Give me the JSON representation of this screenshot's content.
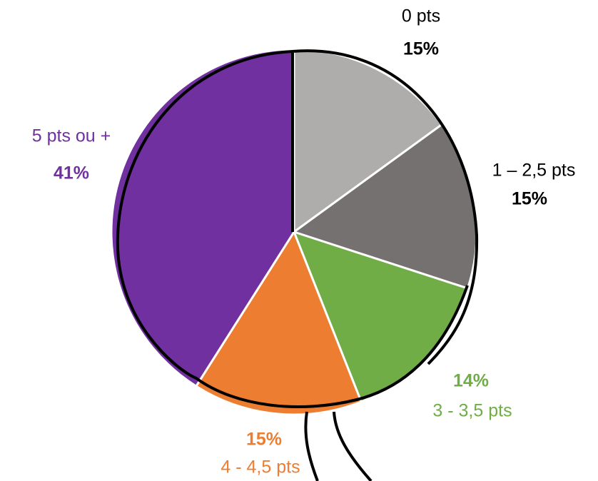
{
  "chart_data": {
    "type": "pie",
    "categories": [
      "0 pts",
      "1 – 2,5 pts",
      "3 - 3,5 pts",
      "4 - 4,5 pts",
      "5 pts ou +"
    ],
    "values": [
      15,
      15,
      14,
      15,
      41
    ],
    "value_labels": [
      "15%",
      "15%",
      "14%",
      "15%",
      "41%"
    ],
    "colors": [
      "#afadac",
      "#757170",
      "#70ad47",
      "#ed7d31",
      "#7030a0"
    ],
    "label_colors": [
      "#000000",
      "#000000",
      "#70ad47",
      "#ed7d31",
      "#7030a0"
    ]
  }
}
